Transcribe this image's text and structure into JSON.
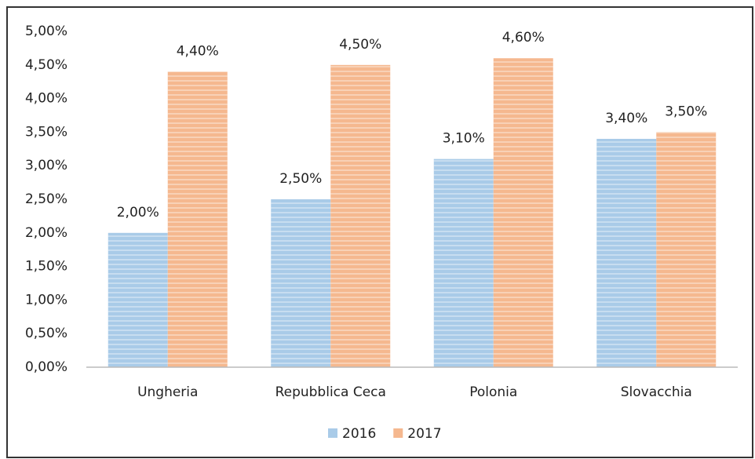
{
  "chart_data": {
    "type": "bar",
    "categories": [
      "Ungheria",
      "Repubblica Ceca",
      "Polonia",
      "Slovacchia"
    ],
    "series": [
      {
        "name": "2016",
        "color": "#a9cbe8",
        "values": [
          2.0,
          2.5,
          3.1,
          3.4
        ],
        "value_labels": [
          "2,00%",
          "2,50%",
          "3,10%",
          "3,40%"
        ]
      },
      {
        "name": "2017",
        "color": "#f5b88f",
        "values": [
          4.4,
          4.5,
          4.6,
          3.5
        ],
        "value_labels": [
          "4,40%",
          "4,50%",
          "4,60%",
          "3,50%"
        ]
      }
    ],
    "ylim": [
      0,
      5
    ],
    "yticks": [
      {
        "value": 0,
        "label": "0,00%"
      },
      {
        "value": 0.5,
        "label": "0,50%"
      },
      {
        "value": 1,
        "label": "1,00%"
      },
      {
        "value": 1.5,
        "label": "1,50%"
      },
      {
        "value": 2,
        "label": "2,00%"
      },
      {
        "value": 2.5,
        "label": "2,50%"
      },
      {
        "value": 3,
        "label": "3,00%"
      },
      {
        "value": 3.5,
        "label": "3,50%"
      },
      {
        "value": 4,
        "label": "4,00%"
      },
      {
        "value": 4.5,
        "label": "4,50%"
      },
      {
        "value": 5,
        "label": "5,00%"
      }
    ],
    "grid": false,
    "legend": "bottom"
  }
}
